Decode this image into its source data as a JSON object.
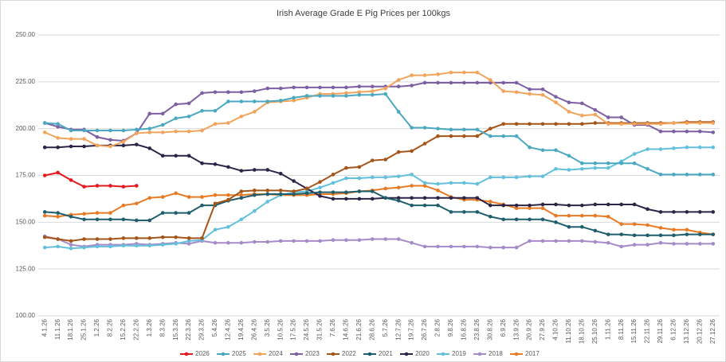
{
  "chart_data": {
    "type": "line",
    "title": "Irish Average Grade E Pig Prices per 100kgs",
    "categories": [
      "4.1.26",
      "11.1.26",
      "18.1.26",
      "25.1.26",
      "1.2.26",
      "8.2.26",
      "15.2.26",
      "22.2.26",
      "1.3.26",
      "8.3.26",
      "15.3.26",
      "22.3.26",
      "29.3.26",
      "5.4.26",
      "12.4.26",
      "19.4.26",
      "26.4.26",
      "3.5.26",
      "10.5.26",
      "17.5.26",
      "24.5.26",
      "31.5.26",
      "7.6.26",
      "14.6.26",
      "21.6.26",
      "28.6.26",
      "5.7.26",
      "12.7.26",
      "19.7.26",
      "26.7.26",
      "2.8.26",
      "9.8.26",
      "16.8.26",
      "23.8.26",
      "30.8.26",
      "6.9.26",
      "13.9.26",
      "20.9.26",
      "27.9.26",
      "4.10.26",
      "11.10.26",
      "18.10.26",
      "25.10.26",
      "1.11.26",
      "8.11.26",
      "15.11.26",
      "22.11.26",
      "29.11.26",
      "6.12.26",
      "13.12.26",
      "20.12.26",
      "27.12.26"
    ],
    "ylim": [
      100,
      250
    ],
    "yticks": [
      {
        "value": 100,
        "label": "100.00"
      },
      {
        "value": 125,
        "label": "125.00"
      },
      {
        "value": 150,
        "label": "150.00"
      },
      {
        "value": 175,
        "label": "175.00"
      },
      {
        "value": 200,
        "label": "200.00"
      },
      {
        "value": 225,
        "label": "225.00"
      },
      {
        "value": 250,
        "label": "250.00"
      }
    ],
    "grid": true,
    "legend": "bottom",
    "series": [
      {
        "name": "2026",
        "color": "#e3191f",
        "values": [
          175,
          176.5,
          172.5,
          169,
          169.5,
          169.5,
          169,
          169.5,
          null,
          null,
          null,
          null,
          null,
          null,
          null,
          null,
          null,
          null,
          null,
          null,
          null,
          null,
          null,
          null,
          null,
          null,
          null,
          null,
          null,
          null,
          null,
          null,
          null,
          null,
          null,
          null,
          null,
          null,
          null,
          null,
          null,
          null,
          null,
          null,
          null,
          null,
          null,
          null,
          null,
          null,
          null,
          null
        ]
      },
      {
        "name": "2025",
        "color": "#4aa9c1",
        "values": [
          203,
          202.5,
          199,
          199,
          199,
          199,
          199,
          199.5,
          200,
          202,
          205.5,
          206.5,
          209.5,
          209.5,
          214.5,
          214.5,
          214.5,
          214.5,
          215,
          216.5,
          217.5,
          217.5,
          217.5,
          217.5,
          218,
          218,
          218.5,
          209,
          200.5,
          200.5,
          200,
          199.5,
          199.5,
          199.5,
          196,
          196,
          196,
          190,
          188.5,
          188.5,
          185.5,
          181.5,
          181.5,
          181.5,
          181.5,
          181.5,
          178.5,
          175.5,
          175.5,
          175.5,
          175.5,
          175.5
        ]
      },
      {
        "name": "2024",
        "color": "#f2a45b",
        "values": [
          198,
          195,
          194.5,
          194.5,
          191,
          190.5,
          193,
          197.5,
          198,
          198,
          198.5,
          198.5,
          199,
          202.5,
          203,
          206.5,
          209,
          214,
          214.5,
          215,
          216.5,
          218.5,
          218.5,
          219,
          219.5,
          220,
          221.5,
          226,
          228.5,
          228.5,
          229,
          230,
          230,
          230,
          226,
          220,
          219.5,
          218.5,
          218,
          214,
          209,
          207,
          207.5,
          202.5,
          202.5,
          202.5,
          202.5,
          202.5,
          203,
          203,
          203,
          203
        ]
      },
      {
        "name": "2023",
        "color": "#7d5fa3",
        "values": [
          203,
          201,
          199.5,
          199.5,
          195.5,
          194,
          193.5,
          197.5,
          208,
          208,
          213,
          213.5,
          219,
          219.5,
          219.5,
          219.5,
          220,
          221.5,
          221.5,
          222,
          222,
          222,
          222,
          222,
          222.5,
          222.5,
          222.5,
          222.5,
          223,
          224.5,
          224.5,
          224.5,
          224.5,
          224.5,
          224.5,
          224.5,
          224.5,
          221,
          221,
          217,
          214,
          213.5,
          210,
          206,
          206,
          202,
          202,
          198.5,
          198.5,
          198.5,
          198.5,
          198
        ]
      },
      {
        "name": "2022",
        "color": "#a65518",
        "values": [
          142,
          141,
          140,
          141,
          141,
          141,
          141.5,
          141.5,
          141.5,
          142,
          142,
          141.5,
          141.5,
          160,
          162,
          166.5,
          167,
          167,
          167,
          166.5,
          168,
          171.5,
          175.5,
          179,
          179.5,
          183,
          183.5,
          187.5,
          188,
          192,
          196,
          196,
          196,
          196,
          200,
          202.5,
          202.5,
          202.5,
          202.5,
          202.5,
          202.5,
          202.5,
          203,
          203,
          203,
          203,
          203,
          203,
          203,
          203.5,
          203.5,
          203.5
        ]
      },
      {
        "name": "2021",
        "color": "#1f5f6d",
        "values": [
          155.5,
          155,
          153,
          151.5,
          151.5,
          151.5,
          151.5,
          151,
          151,
          155,
          155,
          155,
          159,
          159,
          161.5,
          163,
          164.5,
          165,
          165,
          165,
          165.5,
          166,
          166,
          166,
          166.5,
          166.5,
          163,
          161.5,
          159,
          159,
          159,
          155.5,
          155.5,
          155.5,
          153,
          151.5,
          151.5,
          151.5,
          151.5,
          150,
          147.5,
          147.5,
          145.5,
          143.5,
          143.5,
          143,
          143,
          143,
          143,
          143.5,
          143.5,
          143.5
        ]
      },
      {
        "name": "2020",
        "color": "#2d2448",
        "values": [
          190,
          190,
          190.5,
          190.5,
          191,
          191,
          191,
          191.5,
          189.5,
          185.5,
          185.5,
          185.5,
          181.5,
          181,
          179.5,
          177.5,
          178,
          178,
          176,
          172,
          168,
          164,
          162.5,
          162.5,
          162.5,
          162.5,
          163,
          163,
          163,
          163,
          163,
          163,
          163,
          163,
          159,
          159,
          159,
          159,
          159.5,
          159.5,
          159,
          159,
          159.5,
          159.5,
          159.5,
          159.5,
          157,
          155.5,
          155.5,
          155.5,
          155.5,
          155.5
        ]
      },
      {
        "name": "2019",
        "color": "#63c0dc",
        "values": [
          136.5,
          137,
          136,
          136.5,
          137,
          137,
          137.5,
          137.5,
          137.5,
          138,
          138.5,
          140,
          140.5,
          146,
          147.5,
          151.5,
          156,
          161,
          164.5,
          166,
          166.5,
          168.5,
          171,
          173.5,
          173.5,
          174,
          174,
          174.5,
          175.5,
          171,
          170.5,
          171,
          171,
          170.5,
          174,
          174,
          174,
          174.5,
          174.5,
          178.5,
          178,
          178.5,
          179,
          179,
          182.5,
          186.5,
          189,
          189,
          189.5,
          190,
          190,
          190
        ]
      },
      {
        "name": "2018",
        "color": "#a58bc9",
        "values": [
          142.5,
          141,
          138,
          137,
          138,
          138,
          138,
          138.5,
          138,
          138.5,
          139,
          138.5,
          140,
          139,
          139,
          139,
          139.5,
          139.5,
          140,
          140,
          140,
          140,
          140.5,
          140.5,
          140.5,
          141,
          141,
          141,
          139,
          137,
          137,
          137,
          137,
          137,
          136.5,
          136.5,
          136.5,
          140,
          140,
          140,
          140,
          140,
          139.5,
          139,
          137,
          138,
          138,
          139,
          138.5,
          138.5,
          138.5,
          138.5
        ]
      },
      {
        "name": "2017",
        "color": "#e87a24",
        "values": [
          153.5,
          153,
          154,
          154.5,
          155,
          155,
          159,
          160,
          163,
          163.5,
          165.5,
          163.5,
          163.5,
          164.5,
          164.5,
          164.5,
          165,
          165,
          164.5,
          164.5,
          164.5,
          165,
          165,
          165.5,
          166.5,
          167,
          168,
          168.5,
          169.5,
          169.5,
          167,
          163.5,
          162,
          162,
          161,
          159.5,
          157.5,
          157.5,
          157.5,
          153.5,
          153.5,
          153.5,
          153.5,
          153,
          149,
          149,
          148.5,
          147,
          146,
          146,
          144.5,
          143.5
        ]
      }
    ]
  }
}
